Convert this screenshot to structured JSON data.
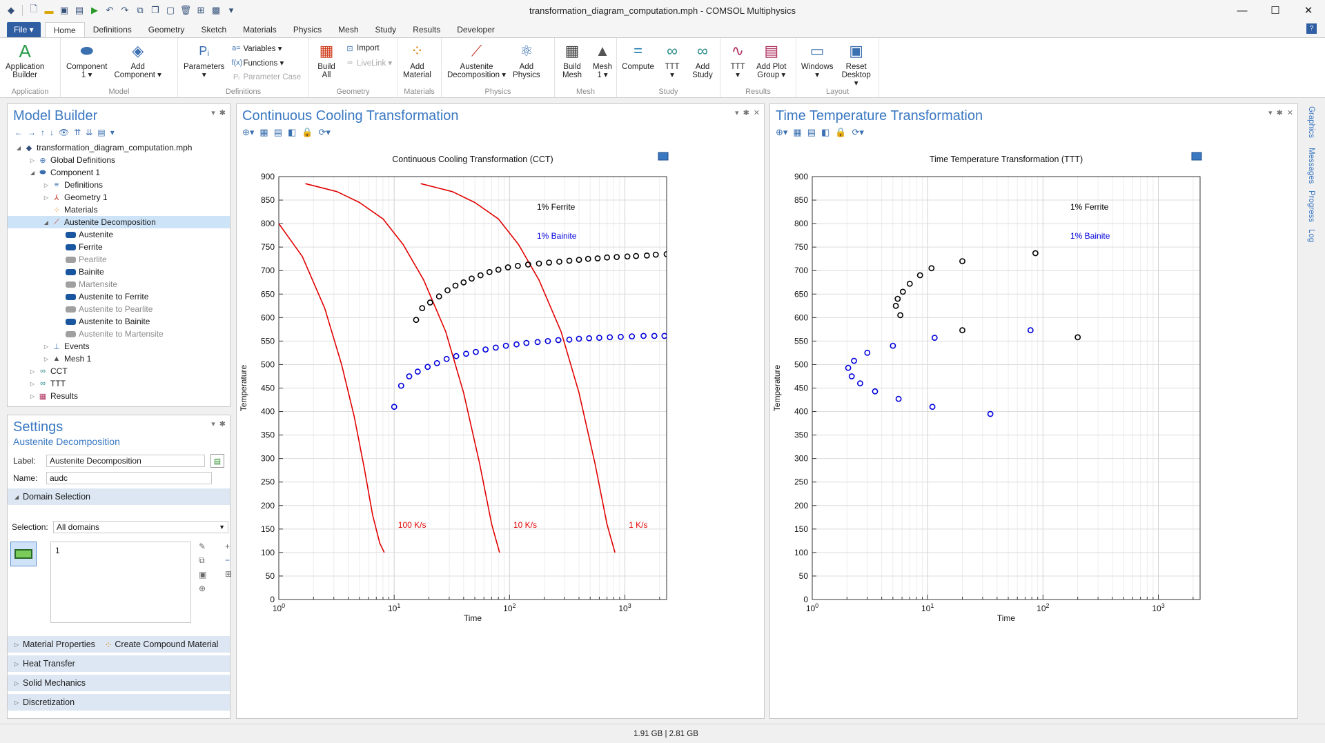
{
  "window": {
    "title": "transformation_diagram_computation.mph - COMSOL Multiphysics"
  },
  "ribbon_tabs": [
    "Home",
    "Definitions",
    "Geometry",
    "Sketch",
    "Materials",
    "Physics",
    "Mesh",
    "Study",
    "Results",
    "Developer"
  ],
  "file_label": "File ▾",
  "help": "?",
  "ribbon": {
    "application": {
      "label": "Application\nBuilder",
      "group": "Application"
    },
    "model": {
      "component": "Component\n1 ▾",
      "add_component": "Add\nComponent ▾",
      "group": "Model"
    },
    "definitions": {
      "parameters": "Parameters\n▾",
      "variables": "Variables ▾",
      "functions": "Functions ▾",
      "parameter_case": "Parameter Case",
      "group": "Definitions"
    },
    "geometry": {
      "build_all": "Build\nAll",
      "import": "Import",
      "livelink": "LiveLink ▾",
      "group": "Geometry"
    },
    "materials": {
      "add_material": "Add\nMaterial",
      "group": "Materials"
    },
    "physics": {
      "austenite": "Austenite\nDecomposition ▾",
      "add_physics": "Add\nPhysics",
      "group": "Physics"
    },
    "mesh": {
      "build_mesh": "Build\nMesh",
      "mesh1": "Mesh\n1 ▾",
      "group": "Mesh"
    },
    "study": {
      "compute": "Compute",
      "ttt": "TTT\n▾",
      "add_study": "Add\nStudy",
      "group": "Study"
    },
    "results": {
      "ttt": "TTT\n▾",
      "add_plot_group": "Add Plot\nGroup ▾",
      "group": "Results"
    },
    "layout": {
      "windows": "Windows\n▾",
      "reset_desktop": "Reset\nDesktop ▾",
      "group": "Layout"
    }
  },
  "model_builder": {
    "title": "Model Builder",
    "tree": [
      {
        "label": "transformation_diagram_computation.mph",
        "level": 0,
        "arrow": "◢",
        "icon": "◆",
        "color": "#35517a"
      },
      {
        "label": "Global Definitions",
        "level": 1,
        "arrow": "▷",
        "icon": "⊕",
        "color": "#3a6fb0"
      },
      {
        "label": "Component 1",
        "level": 1,
        "arrow": "◢",
        "icon": "⬬",
        "color": "#3a6fb0"
      },
      {
        "label": "Definitions",
        "level": 2,
        "arrow": "▷",
        "icon": "≡",
        "color": "#3a6fb0"
      },
      {
        "label": "Geometry 1",
        "level": 2,
        "arrow": "▷",
        "icon": "⅄",
        "color": "#c0392b"
      },
      {
        "label": "Materials",
        "level": 2,
        "arrow": "",
        "icon": "⁘",
        "color": "#e07b00"
      },
      {
        "label": "Austenite Decomposition",
        "level": 2,
        "arrow": "◢",
        "icon": "⟋",
        "color": "#c0392b",
        "selected": true
      },
      {
        "label": "Austenite",
        "level": 3,
        "chip": "on"
      },
      {
        "label": "Ferrite",
        "level": 3,
        "chip": "on"
      },
      {
        "label": "Pearlite",
        "level": 3,
        "chip": "off"
      },
      {
        "label": "Bainite",
        "level": 3,
        "chip": "on"
      },
      {
        "label": "Martensite",
        "level": 3,
        "chip": "off"
      },
      {
        "label": "Austenite to Ferrite",
        "level": 3,
        "chip": "on"
      },
      {
        "label": "Austenite to Pearlite",
        "level": 3,
        "chip": "off"
      },
      {
        "label": "Austenite to Bainite",
        "level": 3,
        "chip": "on"
      },
      {
        "label": "Austenite to Martensite",
        "level": 3,
        "chip": "off"
      },
      {
        "label": "Events",
        "level": 2,
        "arrow": "▷",
        "icon": "⊥",
        "color": "#3a6fb0"
      },
      {
        "label": "Mesh 1",
        "level": 2,
        "arrow": "▷",
        "icon": "▲",
        "color": "#555"
      },
      {
        "label": "CCT",
        "level": 1,
        "arrow": "▷",
        "icon": "∞",
        "color": "#2a8a8a"
      },
      {
        "label": "TTT",
        "level": 1,
        "arrow": "▷",
        "icon": "∞",
        "color": "#2a8a8a"
      },
      {
        "label": "Results",
        "level": 1,
        "arrow": "▷",
        "icon": "▦",
        "color": "#b03060"
      }
    ]
  },
  "settings": {
    "title": "Settings",
    "subtitle": "Austenite Decomposition",
    "label_field": "Label:",
    "label_value": "Austenite Decomposition",
    "name_field": "Name:",
    "name_value": "audc",
    "domain_selection": "Domain Selection",
    "selection_label": "Selection:",
    "selection_value": "All domains",
    "selection_item": "1",
    "sections": [
      "Material Properties",
      "Heat Transfer",
      "Solid Mechanics",
      "Discretization"
    ],
    "compound_material": "Create Compound Material"
  },
  "graphics_windows": [
    {
      "title": "Continuous Cooling Transformation"
    },
    {
      "title": "Time Temperature Transformation"
    }
  ],
  "side_tabs": [
    "Graphics",
    "Messages",
    "Progress",
    "Log"
  ],
  "status": "1.91 GB | 2.81 GB",
  "colors": {
    "accent": "#3a78c2",
    "cooling_curve": "#e00000",
    "ferrite": "#000000",
    "bainite": "#0000dd"
  },
  "chart_data": [
    {
      "type": "scatter",
      "title": "Continuous Cooling Transformation (CCT)",
      "xlabel": "Time",
      "ylabel": "Temperature",
      "xscale": "log",
      "xlim": [
        1,
        2300
      ],
      "ylim": [
        0,
        900
      ],
      "xticks": [
        "10^0",
        "10^1",
        "10^2",
        "10^3"
      ],
      "yticks": [
        0,
        50,
        100,
        150,
        200,
        250,
        300,
        350,
        400,
        450,
        500,
        550,
        600,
        650,
        700,
        750,
        800,
        850,
        900
      ],
      "legend": [
        {
          "text": "1% Ferrite",
          "color": "#000000"
        },
        {
          "text": "1% Bainite",
          "color": "#0000dd"
        }
      ],
      "lines": [
        {
          "label": "100 K/s",
          "color": "#e00000",
          "x": [
            1,
            1.6,
            2.5,
            3.5,
            4.5,
            5.5,
            6.5,
            7.5,
            8.2
          ],
          "y": [
            800,
            730,
            620,
            500,
            390,
            280,
            180,
            120,
            100
          ]
        },
        {
          "label": "10 K/s",
          "color": "#e00000",
          "x": [
            1.7,
            3.2,
            5,
            8,
            12,
            18,
            28,
            40,
            55,
            70,
            82
          ],
          "y": [
            885,
            868,
            845,
            810,
            755,
            680,
            570,
            440,
            290,
            160,
            100
          ]
        },
        {
          "label": "1 K/s",
          "color": "#e00000",
          "x": [
            17,
            32,
            50,
            80,
            120,
            180,
            280,
            400,
            550,
            700,
            820
          ],
          "y": [
            885,
            868,
            845,
            810,
            755,
            680,
            570,
            440,
            290,
            160,
            100
          ]
        }
      ],
      "series": [
        {
          "name": "1% Ferrite",
          "color": "#000000",
          "x": [
            15.5,
            17.5,
            20.5,
            24.5,
            29,
            34,
            40,
            47,
            56,
            67,
            80,
            97,
            118,
            145,
            180,
            220,
            270,
            330,
            400,
            480,
            580,
            700,
            850,
            1050,
            1250,
            1550,
            1850,
            2300
          ],
          "y": [
            595,
            620,
            632,
            645,
            658,
            668,
            675,
            683,
            690,
            697,
            702,
            707,
            710,
            713,
            715,
            717,
            719,
            721,
            723,
            725,
            726,
            728,
            729,
            730,
            731,
            732,
            734,
            735
          ]
        },
        {
          "name": "1% Bainite",
          "color": "#0000dd",
          "x": [
            10,
            11.5,
            13.5,
            16,
            19.5,
            23.5,
            28.5,
            34.5,
            42,
            51,
            62,
            76,
            93,
            115,
            140,
            175,
            215,
            265,
            330,
            400,
            490,
            600,
            740,
            920,
            1150,
            1450,
            1800,
            2200
          ],
          "y": [
            410,
            455,
            475,
            485,
            495,
            503,
            512,
            518,
            523,
            527,
            532,
            536,
            540,
            543,
            546,
            548,
            550,
            552,
            553,
            555,
            556,
            557,
            558,
            559,
            560,
            561,
            561,
            561
          ]
        }
      ],
      "annotations": [
        "100 K/s",
        "10 K/s",
        "1 K/s"
      ],
      "grid": true
    },
    {
      "type": "scatter",
      "title": "Time Temperature Transformation (TTT)",
      "xlabel": "Time",
      "ylabel": "Temperature",
      "xscale": "log",
      "xlim": [
        1,
        2300
      ],
      "ylim": [
        0,
        900
      ],
      "xticks": [
        "10^0",
        "10^1",
        "10^2",
        "10^3"
      ],
      "yticks": [
        0,
        50,
        100,
        150,
        200,
        250,
        300,
        350,
        400,
        450,
        500,
        550,
        600,
        650,
        700,
        750,
        800,
        850,
        900
      ],
      "legend": [
        {
          "text": "1% Ferrite",
          "color": "#000000"
        },
        {
          "text": "1% Bainite",
          "color": "#0000dd"
        }
      ],
      "series": [
        {
          "name": "1% Ferrite",
          "color": "#000000",
          "x": [
            5.3,
            5.5,
            5.8,
            6.1,
            7,
            8.6,
            10.8,
            20,
            20,
            86,
            200
          ],
          "y": [
            625,
            640,
            605,
            655,
            672,
            690,
            705,
            720,
            573,
            737,
            558
          ]
        },
        {
          "name": "1% Bainite",
          "color": "#0000dd",
          "x": [
            2.05,
            2.2,
            2.3,
            2.6,
            3,
            3.5,
            5,
            5.6,
            11,
            11.5,
            35,
            78
          ],
          "y": [
            493,
            475,
            508,
            460,
            525,
            443,
            540,
            427,
            410,
            557,
            395,
            573
          ]
        }
      ],
      "grid": true
    }
  ]
}
